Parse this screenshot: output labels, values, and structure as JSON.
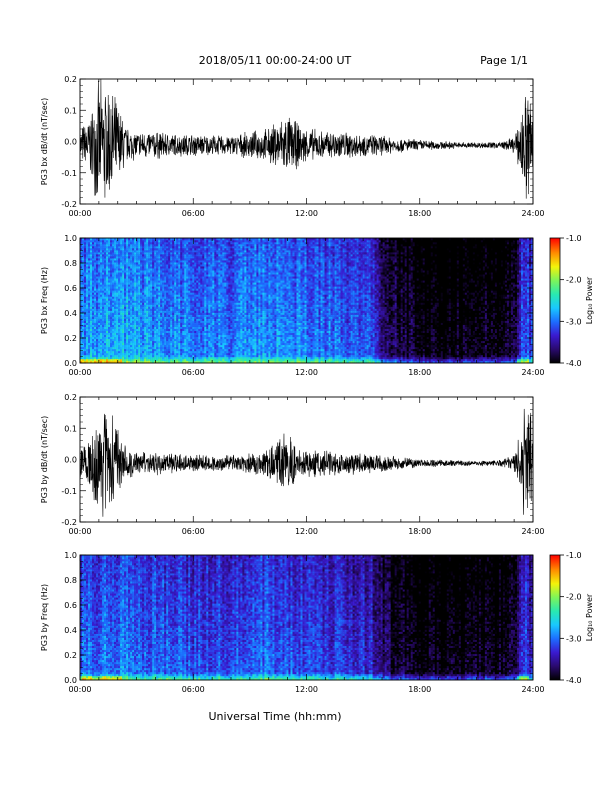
{
  "header": {
    "title": "2018/05/11   00:00-24:00 UT",
    "page_label": "Page 1/1"
  },
  "footer": {
    "xaxis_title": "Universal Time (hh:mm)"
  },
  "colors": {
    "waveform": "#000000",
    "spectrogram_background": "#000000",
    "colormap": [
      "#000000",
      "#2a0a6e",
      "#3a1ad0",
      "#1d6dff",
      "#19c8ff",
      "#29e9b0",
      "#7df55a",
      "#f3f40a",
      "#ff8c00",
      "#ff0000"
    ]
  },
  "chart_data": [
    {
      "type": "line",
      "panel": "bx-waveform",
      "ylabel": "PG3 bx dB/dt (nT/sec)",
      "xlim": [
        0,
        24
      ],
      "ylim": [
        -0.2,
        0.2
      ],
      "xticks": [
        "00:00",
        "06:00",
        "12:00",
        "18:00",
        "24:00"
      ],
      "yticks": [
        "-0.2",
        "-0.1",
        "0.0",
        "0.1",
        "0.2"
      ],
      "envelope": {
        "hours": [
          0.0,
          0.5,
          1.0,
          1.5,
          2.0,
          2.5,
          3,
          4,
          5,
          6,
          7,
          8,
          9,
          10,
          10.5,
          11,
          11.5,
          12,
          13,
          14,
          15,
          16,
          17,
          18,
          19,
          20,
          21,
          22,
          22.5,
          23.0,
          23.3,
          23.6,
          24.0
        ],
        "amplitude": [
          0.06,
          0.1,
          0.22,
          0.22,
          0.15,
          0.06,
          0.05,
          0.05,
          0.04,
          0.04,
          0.035,
          0.035,
          0.045,
          0.06,
          0.09,
          0.11,
          0.08,
          0.06,
          0.05,
          0.05,
          0.04,
          0.035,
          0.025,
          0.02,
          0.015,
          0.012,
          0.01,
          0.012,
          0.015,
          0.03,
          0.08,
          0.22,
          0.2
        ]
      }
    },
    {
      "type": "heatmap",
      "panel": "bx-spectrogram",
      "ylabel": "PG3 bx Freq (Hz)",
      "xlim": [
        0,
        24
      ],
      "ylim": [
        0.0,
        1.0
      ],
      "xticks": [
        "00:00",
        "06:00",
        "12:00",
        "18:00",
        "24:00"
      ],
      "yticks": [
        "0.0",
        "0.2",
        "0.4",
        "0.6",
        "0.8",
        "1.0"
      ],
      "colorbar": {
        "label": "Log₁₀ Power",
        "range": [
          -4.0,
          -1.0
        ],
        "ticks": [
          "-1.0",
          "-2.0",
          "-3.0",
          "-4.0"
        ]
      },
      "power_profile": {
        "hours": [
          0,
          2,
          4,
          6,
          8,
          10,
          12,
          14,
          15.5,
          16,
          17,
          18,
          19,
          20,
          21,
          22,
          23,
          23.5,
          24
        ],
        "log_power": [
          -2.8,
          -2.7,
          -2.8,
          -2.9,
          -2.9,
          -2.8,
          -2.9,
          -3.0,
          -3.1,
          -3.5,
          -3.8,
          -3.9,
          -3.95,
          -3.95,
          -3.9,
          -3.9,
          -3.8,
          -3.0,
          -3.2
        ]
      }
    },
    {
      "type": "line",
      "panel": "by-waveform",
      "ylabel": "PG3 by dB/dt (nT/sec)",
      "xlim": [
        0,
        24
      ],
      "ylim": [
        -0.2,
        0.2
      ],
      "xticks": [
        "00:00",
        "06:00",
        "12:00",
        "18:00",
        "24:00"
      ],
      "yticks": [
        "-0.2",
        "-0.1",
        "0.0",
        "0.1",
        "0.2"
      ],
      "envelope": {
        "hours": [
          0.0,
          0.5,
          1.0,
          1.5,
          2.0,
          2.5,
          3,
          4,
          5,
          6,
          7,
          8,
          9,
          10,
          10.5,
          11,
          11.5,
          12,
          13,
          14,
          15,
          16,
          17,
          18,
          19,
          20,
          21,
          22,
          22.5,
          23.0,
          23.3,
          23.6,
          24.0
        ],
        "amplitude": [
          0.05,
          0.09,
          0.16,
          0.22,
          0.12,
          0.05,
          0.04,
          0.04,
          0.035,
          0.03,
          0.03,
          0.03,
          0.035,
          0.05,
          0.08,
          0.11,
          0.06,
          0.05,
          0.045,
          0.04,
          0.035,
          0.03,
          0.022,
          0.015,
          0.012,
          0.01,
          0.01,
          0.012,
          0.015,
          0.03,
          0.1,
          0.22,
          0.18
        ]
      }
    },
    {
      "type": "heatmap",
      "panel": "by-spectrogram",
      "ylabel": "PG3 by Freq (Hz)",
      "xlim": [
        0,
        24
      ],
      "ylim": [
        0.0,
        1.0
      ],
      "xticks": [
        "00:00",
        "06:00",
        "12:00",
        "18:00",
        "24:00"
      ],
      "yticks": [
        "0.0",
        "0.2",
        "0.4",
        "0.6",
        "0.8",
        "1.0"
      ],
      "colorbar": {
        "label": "Log₁₀ Power",
        "range": [
          -4.0,
          -1.0
        ],
        "ticks": [
          "-1.0",
          "-2.0",
          "-3.0",
          "-4.0"
        ]
      },
      "power_profile": {
        "hours": [
          0,
          2,
          4,
          6,
          8,
          10,
          12,
          14,
          15.5,
          16,
          17,
          18,
          19,
          20,
          21,
          22,
          23,
          23.5,
          24
        ],
        "log_power": [
          -3.0,
          -2.9,
          -3.0,
          -3.1,
          -3.1,
          -3.0,
          -3.1,
          -3.2,
          -3.3,
          -3.6,
          -3.85,
          -3.95,
          -3.95,
          -3.95,
          -3.9,
          -3.9,
          -3.85,
          -3.1,
          -3.4
        ]
      }
    }
  ]
}
